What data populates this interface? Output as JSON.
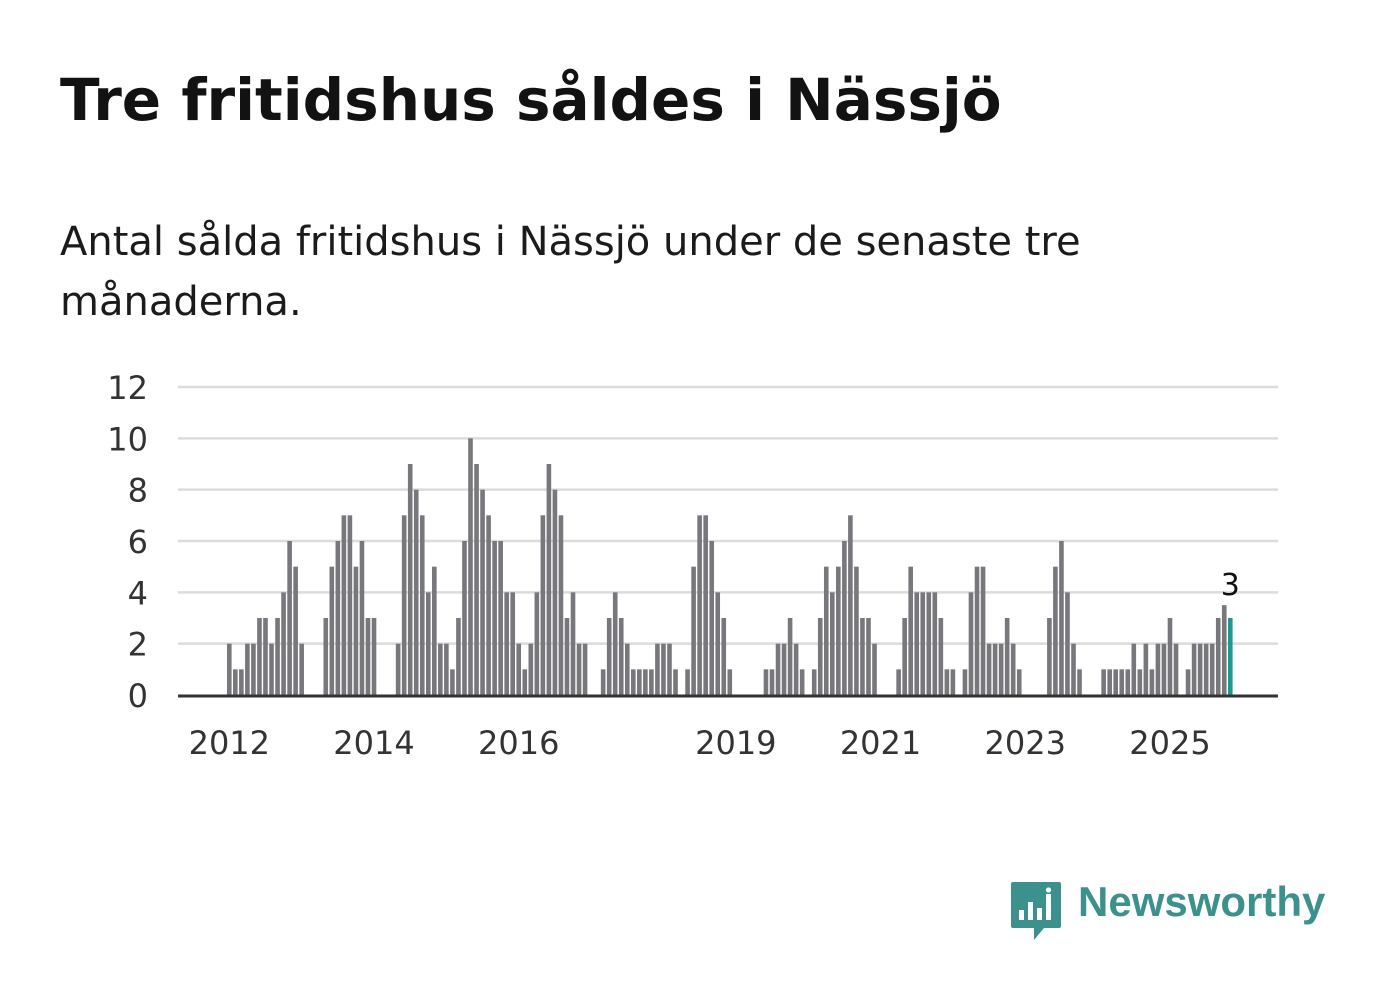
{
  "title": "Tre fritidshus såldes i Nässjö",
  "subtitle": "Antal sålda fritidshus i Nässjö under de senaste tre månaderna.",
  "brand": {
    "name": "Newsworthy",
    "color": "#3d918d",
    "icon": "bar-chart-speech-bubble-icon"
  },
  "chart_data": {
    "type": "bar",
    "title": "Tre fritidshus såldes i Nässjö",
    "subtitle": "Antal sålda fritidshus i Nässjö under de senaste tre månaderna.",
    "xlabel": "",
    "ylabel": "",
    "ylim": [
      0,
      12
    ],
    "yticks": [
      0,
      2,
      4,
      6,
      8,
      10,
      12
    ],
    "grid": true,
    "xtick_labels": [
      {
        "label": "2012",
        "index": 0
      },
      {
        "label": "2014",
        "index": 24
      },
      {
        "label": "2016",
        "index": 48
      },
      {
        "label": "2019",
        "index": 84
      },
      {
        "label": "2021",
        "index": 108
      },
      {
        "label": "2023",
        "index": 132
      },
      {
        "label": "2025",
        "index": 156
      }
    ],
    "values": [
      2,
      1,
      1,
      2,
      2,
      3,
      3,
      2,
      3,
      4,
      6,
      5,
      2,
      0,
      0,
      0,
      3,
      5,
      6,
      7,
      7,
      5,
      6,
      3,
      3,
      0,
      0,
      0,
      2,
      7,
      9,
      8,
      7,
      4,
      5,
      2,
      2,
      1,
      3,
      6,
      10,
      9,
      8,
      7,
      6,
      6,
      4,
      4,
      2,
      1,
      2,
      4,
      7,
      9,
      8,
      7,
      3,
      4,
      2,
      2,
      0,
      0,
      1,
      3,
      4,
      3,
      2,
      1,
      1,
      1,
      1,
      2,
      2,
      2,
      1,
      0,
      1,
      5,
      7,
      7,
      6,
      4,
      3,
      1,
      0,
      0,
      0,
      0,
      0,
      1,
      1,
      2,
      2,
      3,
      2,
      1,
      0,
      1,
      3,
      5,
      4,
      5,
      6,
      7,
      5,
      3,
      3,
      2,
      0,
      0,
      0,
      1,
      3,
      5,
      4,
      4,
      4,
      4,
      3,
      1,
      1,
      0,
      1,
      4,
      5,
      5,
      2,
      2,
      2,
      3,
      2,
      1,
      0,
      0,
      0,
      0,
      3,
      5,
      6,
      4,
      2,
      1,
      0,
      0,
      0,
      1,
      1,
      1,
      1,
      1,
      2,
      1,
      2,
      1,
      2,
      2,
      3,
      2,
      0,
      1,
      2,
      2,
      2,
      2,
      3,
      3.5,
      3
    ],
    "highlight": {
      "index": 166,
      "value": 3,
      "label": "3",
      "color": "#1b9a92"
    },
    "bar_color": "#77777c",
    "grid_color": "#dcdcdc",
    "axis_color": "#333333"
  }
}
